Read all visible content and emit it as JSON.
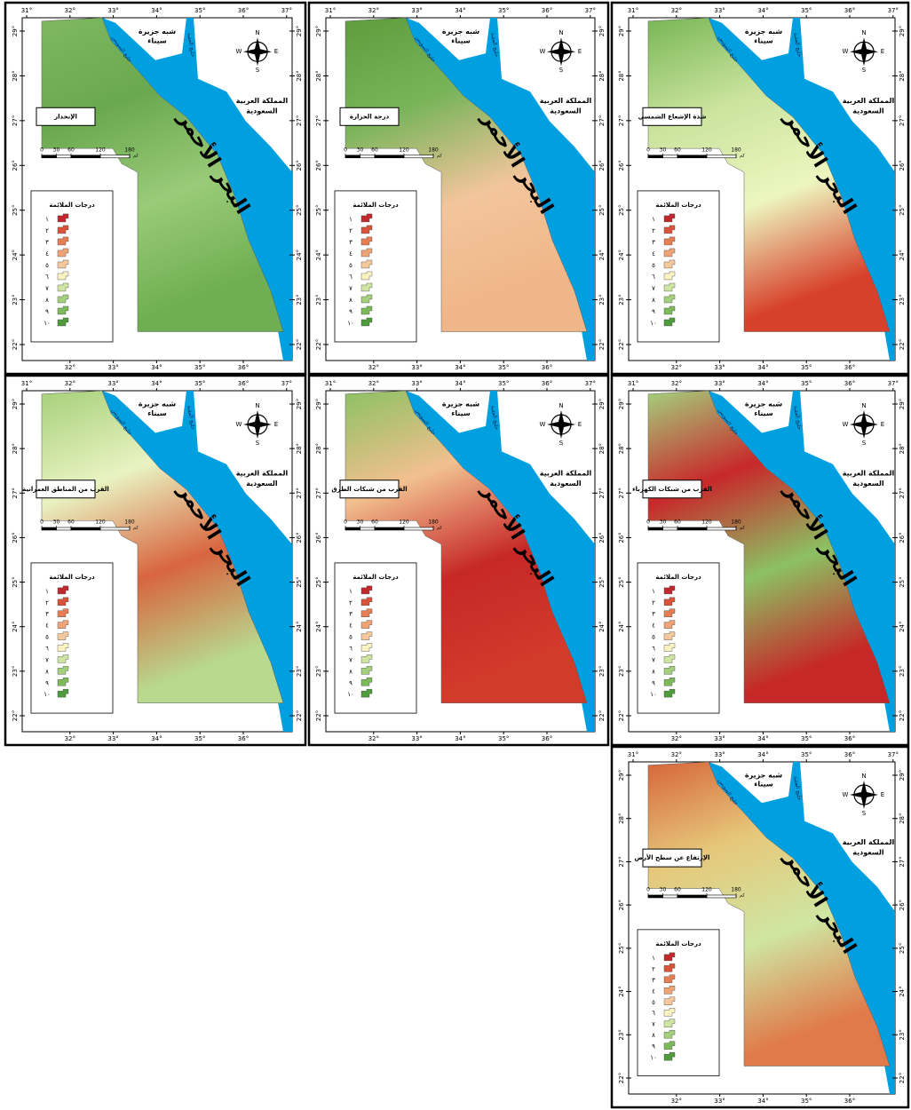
{
  "panels": [
    {
      "title": "الإنحدار"
    },
    {
      "title": "درجة الحرارة"
    },
    {
      "title": "شدة الإشعاع الشمسي"
    },
    {
      "title": "القرب من المناطق العمرانية"
    },
    {
      "title": "القرب من شبكات الطرق"
    },
    {
      "title": "القرب من شبكات الكهرباء"
    },
    {
      "title": "الإرتفاع عن سطح الأرض"
    }
  ],
  "map": {
    "top_longitudes": [
      {
        "value": 31,
        "label": "31°"
      },
      {
        "value": 32,
        "label": "32°"
      },
      {
        "value": 33,
        "label": "33°"
      },
      {
        "value": 34,
        "label": "34°"
      },
      {
        "value": 35,
        "label": "35°"
      },
      {
        "value": 36,
        "label": "36°"
      },
      {
        "value": 37,
        "label": "37°"
      }
    ],
    "bottom_longitudes": [
      {
        "value": 32,
        "label": "32°"
      },
      {
        "value": 33,
        "label": "33°"
      },
      {
        "value": 34,
        "label": "34°"
      },
      {
        "value": 35,
        "label": "35°"
      },
      {
        "value": 36,
        "label": "36°"
      }
    ],
    "latitudes": [
      {
        "value": 29,
        "label": "29°"
      },
      {
        "value": 28,
        "label": "28°"
      },
      {
        "value": 27,
        "label": "27°"
      },
      {
        "value": 26,
        "label": "26°"
      },
      {
        "value": 25,
        "label": "25°"
      },
      {
        "value": 24,
        "label": "24°"
      },
      {
        "value": 23,
        "label": "23°"
      },
      {
        "value": 22,
        "label": "22°"
      }
    ],
    "places": {
      "sinai": [
        "شبه جزيرة",
        "سيناء"
      ],
      "saudi": [
        "المملكة العربية",
        "السعودية"
      ],
      "red_sea": "البحر الأحمر",
      "suez": "خليج السويس",
      "aqaba": "خليج العقبة"
    },
    "compass": {
      "n": "N",
      "s": "S",
      "e": "E",
      "w": "W"
    },
    "scale": {
      "ticks": [
        0,
        30,
        60,
        120,
        180
      ],
      "unit": "كم"
    },
    "legend": {
      "title": "درجات الملائمة",
      "items": [
        {
          "value": 1,
          "label": "١"
        },
        {
          "value": 2,
          "label": "٢"
        },
        {
          "value": 3,
          "label": "٣"
        },
        {
          "value": 4,
          "label": "٤"
        },
        {
          "value": 5,
          "label": "٥"
        },
        {
          "value": 6,
          "label": "٦"
        },
        {
          "value": 7,
          "label": "٧"
        },
        {
          "value": 8,
          "label": "٨"
        },
        {
          "value": 9,
          "label": "٩"
        },
        {
          "value": 10,
          "label": "١٠"
        }
      ],
      "colors": [
        "#c0282d",
        "#d9533a",
        "#e77d52",
        "#f0a476",
        "#f6c99c",
        "#fbf2c2",
        "#cfe6a2",
        "#a4d07c",
        "#7cba5a",
        "#4f9c3c"
      ]
    }
  }
}
